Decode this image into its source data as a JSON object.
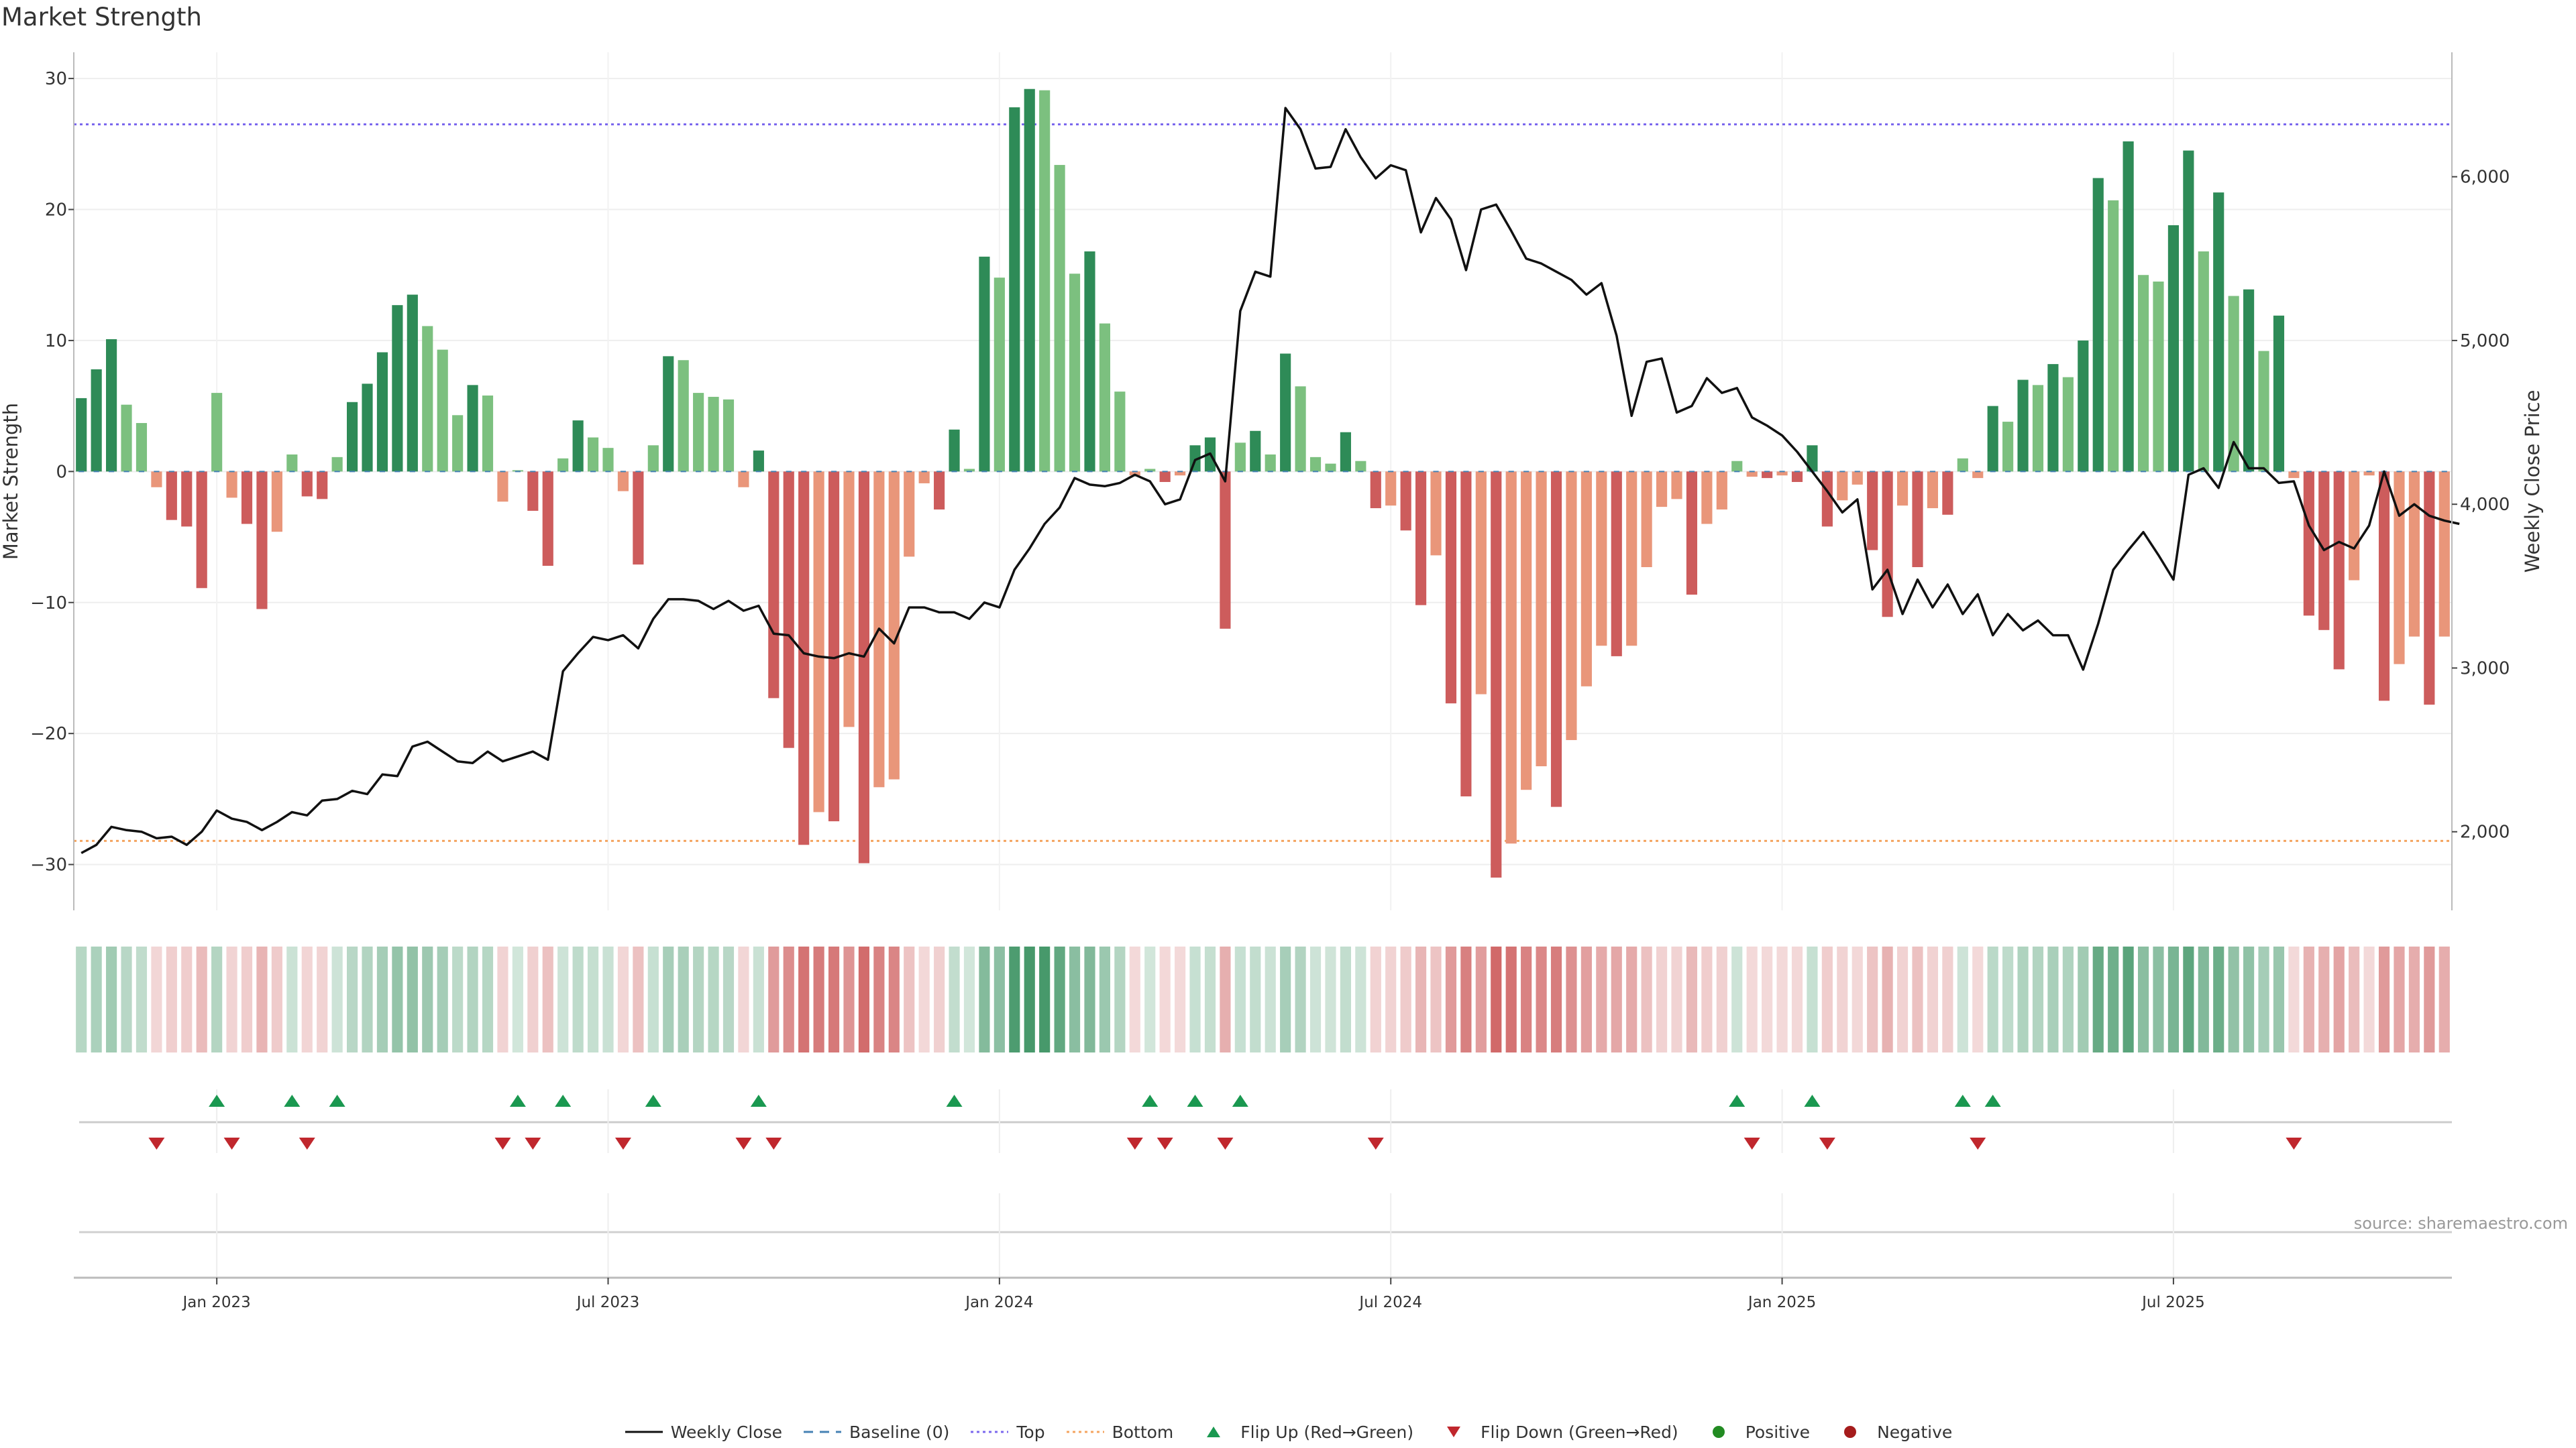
{
  "title": "Market Strength",
  "source": "source: sharemaestro.com",
  "colors": {
    "pos_strong": "#2e8b57",
    "pos_weak": "#7cc07f",
    "neg_strong": "#cd5c5c",
    "neg_weak": "#e9967a",
    "price": "#111111",
    "top": "#7b68ee",
    "bottom": "#f4a460",
    "baseline": "#4682b4",
    "flip_up": "#1a9850",
    "flip_down": "#c0272d"
  },
  "legend": [
    {
      "label": "Weekly Close",
      "icon": "solid-line"
    },
    {
      "label": "Baseline (0)",
      "icon": "dashed-line"
    },
    {
      "label": "Top",
      "icon": "dotted-purple-line"
    },
    {
      "label": "Bottom",
      "icon": "dotted-orange-line"
    },
    {
      "label": "Flip Up (Red→Green)",
      "icon": "triangle-up"
    },
    {
      "label": "Flip Down (Green→Red)",
      "icon": "triangle-down"
    },
    {
      "label": "Positive",
      "icon": "green-dot"
    },
    {
      "label": "Negative",
      "icon": "red-dot"
    }
  ],
  "chart_data": {
    "type": "bar",
    "title": "Market Strength",
    "ylabel": "Market Strength",
    "y2label": "Weekly Close Price",
    "ylim": [
      -33.5,
      32
    ],
    "y2lim": [
      1520,
      6760
    ],
    "yticks": [
      30,
      20,
      10,
      0,
      -10,
      -20,
      -30
    ],
    "ytick_labels": [
      "30",
      "20",
      "10",
      "0",
      "−10",
      "−20",
      "−30"
    ],
    "y2ticks": [
      6000,
      5000,
      4000,
      3000,
      2000
    ],
    "y2tick_labels": [
      "6,000",
      "5,000",
      "4,000",
      "3,000",
      "2,000"
    ],
    "x_start": "2022-11-01",
    "x_end": "2025-10-28",
    "week_count": 157,
    "top_line": 26.5,
    "bottom_line": -28.2,
    "xtick_labels": [
      "Jan 2023",
      "Jul 2023",
      "Jan 2024",
      "Jul 2024",
      "Jan 2025",
      "Jul 2025"
    ],
    "xtick_weeks": [
      9,
      35,
      61,
      87,
      113,
      139
    ],
    "strength": [
      5.6,
      7.8,
      10.1,
      5.1,
      3.7,
      -1.2,
      -3.7,
      -4.2,
      -8.9,
      6.0,
      -2.0,
      -4.0,
      -10.5,
      -4.6,
      1.3,
      -1.9,
      -2.1,
      1.1,
      5.3,
      6.7,
      9.1,
      12.7,
      13.5,
      11.1,
      9.3,
      4.3,
      6.6,
      5.8,
      -2.3,
      0.1,
      -3.0,
      -7.2,
      1.0,
      3.9,
      2.6,
      1.8,
      -1.5,
      -7.1,
      2.0,
      8.8,
      8.5,
      6.0,
      5.7,
      5.5,
      -1.2,
      1.6,
      -17.3,
      -21.1,
      -28.5,
      -26.0,
      -26.7,
      -19.5,
      -29.9,
      -24.1,
      -23.5,
      -6.5,
      -0.9,
      -2.9,
      3.2,
      0.2,
      16.4,
      14.8,
      27.8,
      29.2,
      29.1,
      23.4,
      15.1,
      16.8,
      11.3,
      6.1,
      -0.3,
      0.2,
      -0.8,
      -0.3,
      2.0,
      2.6,
      -12.0,
      2.2,
      3.1,
      1.3,
      9.0,
      6.5,
      1.1,
      0.6,
      3.0,
      0.8,
      -2.8,
      -2.6,
      -4.5,
      -10.2,
      -6.4,
      -17.7,
      -24.8,
      -17.0,
      -31.0,
      -28.4,
      -24.3,
      -22.5,
      -25.6,
      -20.5,
      -16.4,
      -13.3,
      -14.1,
      -13.3,
      -7.3,
      -2.7,
      -2.1,
      -9.4,
      -4.0,
      -2.9,
      0.8,
      -0.4,
      -0.5,
      -0.3,
      -0.8,
      2.0,
      -4.2,
      -2.2,
      -1.0,
      -6.0,
      -11.1,
      -2.6,
      -7.3,
      -2.8,
      -3.3,
      1.0,
      -0.5,
      5.0,
      3.8,
      7.0,
      6.6,
      8.2,
      7.2,
      10.0,
      22.4,
      20.7,
      25.2,
      15.0,
      14.5,
      18.8,
      24.5,
      16.8,
      21.3,
      13.4,
      13.9,
      9.2,
      11.9,
      -0.5,
      -11.0,
      -12.1,
      -15.1,
      -8.3,
      -0.3,
      -17.5,
      -14.7,
      -12.6,
      -17.8,
      -12.6
    ],
    "close": [
      1870,
      1920,
      2030,
      2010,
      2000,
      1960,
      1970,
      1920,
      2000,
      2130,
      2080,
      2060,
      2010,
      2060,
      2120,
      2100,
      2190,
      2200,
      2250,
      2230,
      2350,
      2340,
      2520,
      2550,
      2490,
      2430,
      2420,
      2490,
      2430,
      2460,
      2490,
      2440,
      2980,
      3090,
      3190,
      3170,
      3200,
      3120,
      3300,
      3420,
      3420,
      3410,
      3360,
      3410,
      3350,
      3380,
      3210,
      3200,
      3090,
      3070,
      3060,
      3090,
      3070,
      3240,
      3150,
      3370,
      3370,
      3340,
      3340,
      3300,
      3400,
      3370,
      3600,
      3730,
      3880,
      3980,
      4160,
      4120,
      4110,
      4130,
      4180,
      4140,
      4000,
      4030,
      4270,
      4310,
      4140,
      5180,
      5420,
      5390,
      6420,
      6290,
      6050,
      6060,
      6290,
      6120,
      5990,
      6070,
      6040,
      5660,
      5870,
      5740,
      5430,
      5800,
      5830,
      5670,
      5500,
      5470,
      5420,
      5370,
      5280,
      5350,
      5030,
      4540,
      4870,
      4890,
      4560,
      4600,
      4770,
      4680,
      4710,
      4530,
      4480,
      4420,
      4320,
      4200,
      4080,
      3950,
      4030,
      3480,
      3600,
      3330,
      3540,
      3370,
      3510,
      3330,
      3450,
      3200,
      3330,
      3230,
      3290,
      3200,
      3200,
      2990,
      3270,
      3600,
      3720,
      3830,
      3690,
      3540,
      4180,
      4220,
      4100,
      4380,
      4220,
      4220,
      4130,
      4140,
      3870,
      3720,
      3770,
      3730,
      3870,
      4200,
      3930,
      4000,
      3930,
      3900,
      3880
    ]
  }
}
